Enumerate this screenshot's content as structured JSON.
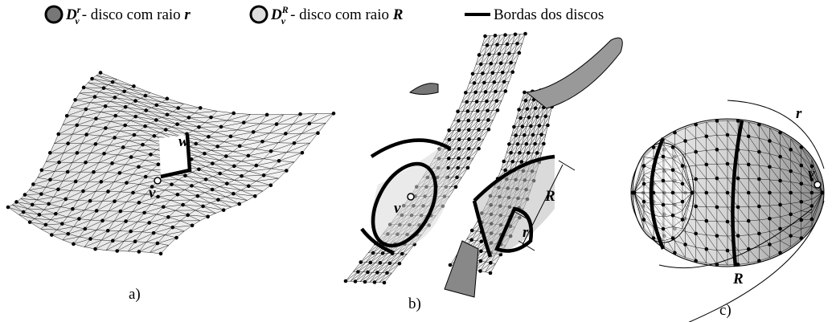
{
  "legend": [
    {
      "symbol": "D",
      "superscript": "r",
      "subscript": "v",
      "description": "- disco com raio",
      "variable": "r"
    },
    {
      "symbol": "D",
      "superscript": "R",
      "subscript": "v",
      "description": "- disco com raio",
      "variable": "R"
    },
    {
      "description": "Bordas dos discos"
    }
  ],
  "panels": [
    {
      "label": "a)",
      "points": [
        "w",
        "v"
      ]
    },
    {
      "label": "b)",
      "points": [
        "v"
      ],
      "radii": [
        "R",
        "r"
      ]
    },
    {
      "label": "c)",
      "points": [
        "v"
      ],
      "radii": [
        "r",
        "R"
      ]
    }
  ]
}
